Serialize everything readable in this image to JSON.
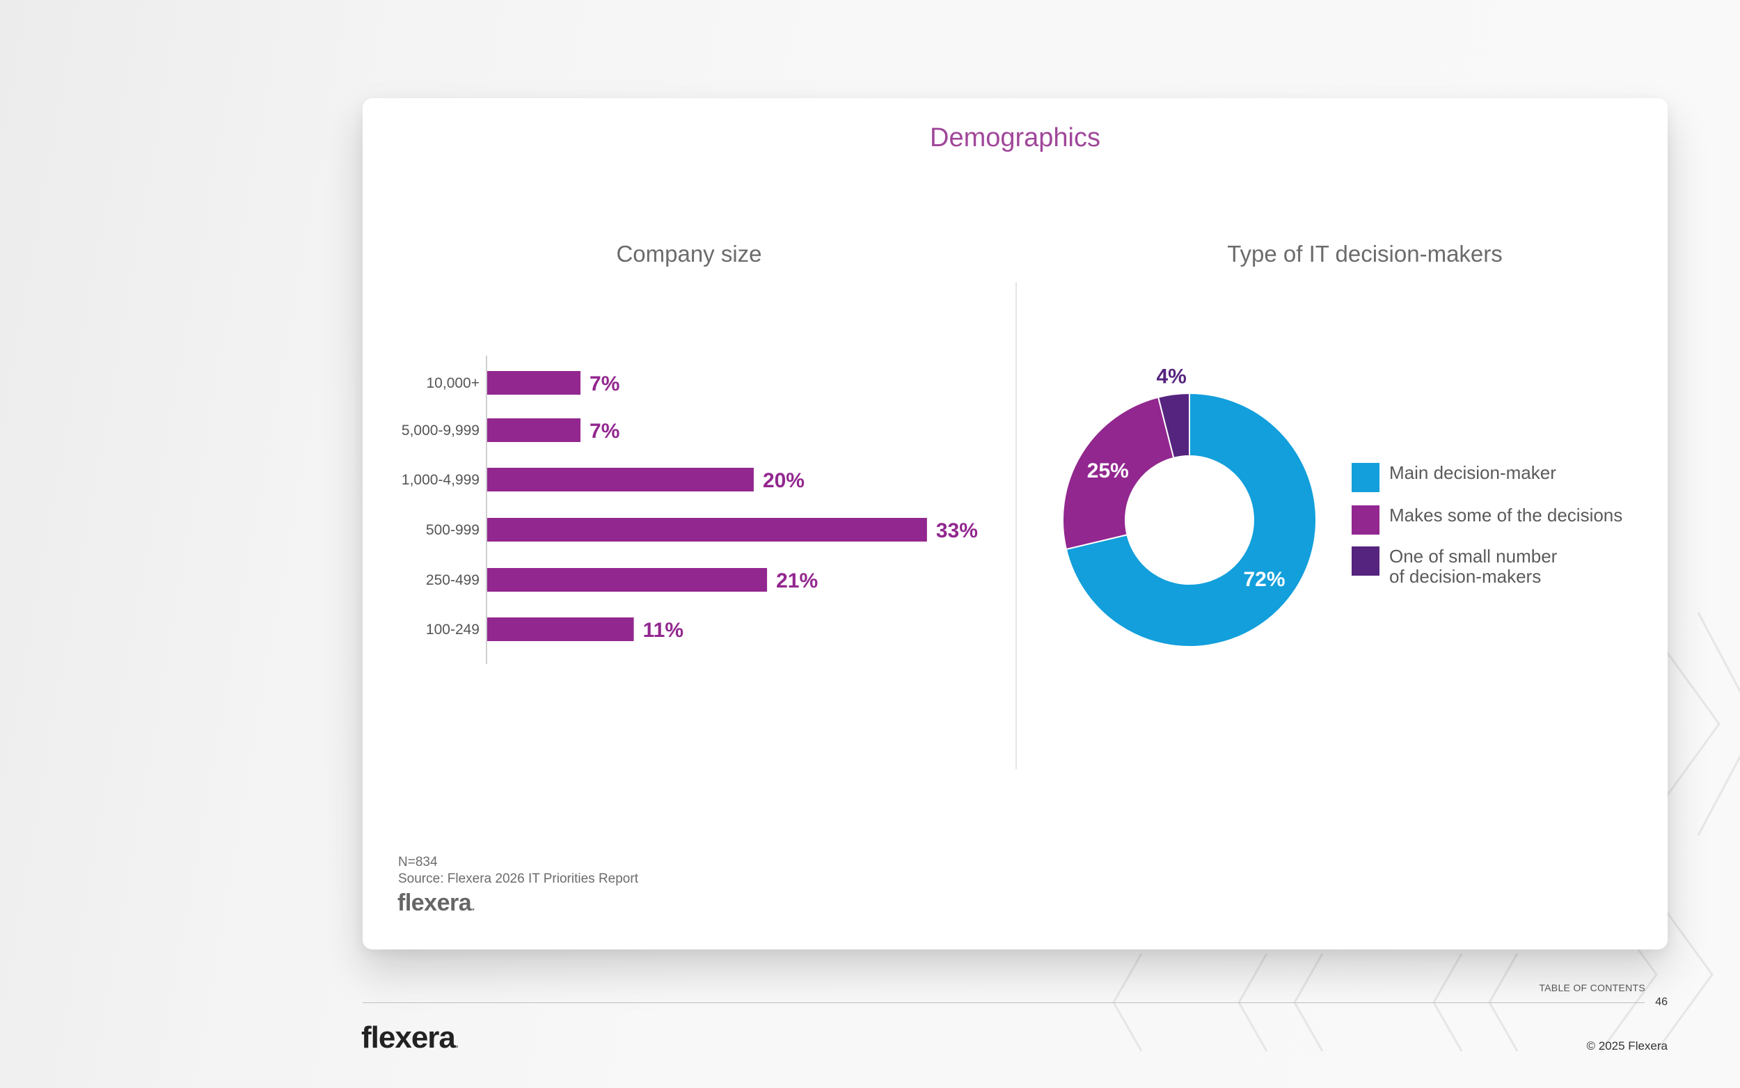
{
  "page": {
    "title": "Demographics",
    "footnote_n": "N=834",
    "footnote_source": "Source: Flexera 2026 IT Priorities Report",
    "brand": "flexera",
    "toc_label": "TABLE OF CONTENTS",
    "page_number": "46",
    "copyright": "© 2025 Flexera"
  },
  "chart_data": [
    {
      "type": "bar",
      "orientation": "horizontal",
      "title": "Company size",
      "categories": [
        "10,000+",
        "5,000-9,999",
        "1,000-4,999",
        "500-999",
        "250-499",
        "100-249"
      ],
      "values": [
        7,
        7,
        20,
        33,
        21,
        11
      ],
      "value_labels": [
        "7%",
        "7%",
        "20%",
        "33%",
        "21%",
        "11%"
      ],
      "unit": "%",
      "color": "#92278f",
      "xlim": [
        0,
        34
      ],
      "grid": false
    },
    {
      "type": "pie",
      "donut": true,
      "title": "Type of IT decision-makers",
      "labels": [
        "Main decision-maker",
        "Makes some of the decisions",
        "One of small number of decision-makers"
      ],
      "values": [
        72,
        25,
        4
      ],
      "value_labels": [
        "72%",
        "25%",
        "4%"
      ],
      "colors": [
        "#129fdb",
        "#92278f",
        "#55247f"
      ],
      "legend_position": "right"
    }
  ]
}
